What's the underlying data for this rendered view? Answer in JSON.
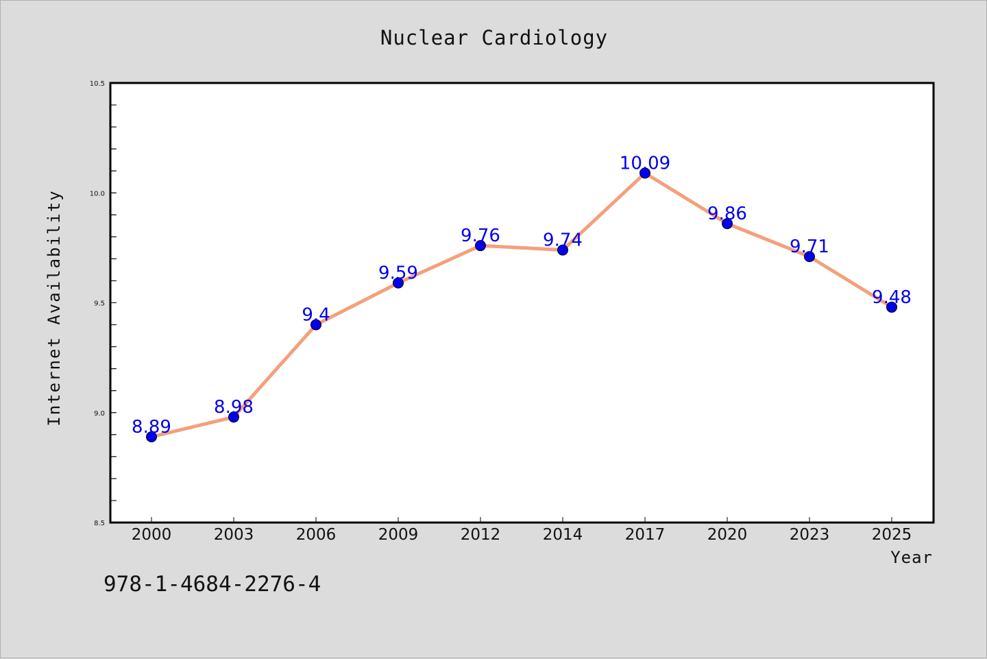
{
  "chart_data": {
    "type": "line",
    "title": "Nuclear Cardiology",
    "xlabel": "Year",
    "ylabel": "Internet Availability",
    "x": [
      "2000",
      "2003",
      "2006",
      "2009",
      "2012",
      "2014",
      "2017",
      "2020",
      "2023",
      "2025"
    ],
    "values": [
      8.89,
      8.98,
      9.4,
      9.59,
      9.76,
      9.74,
      10.09,
      9.86,
      9.71,
      9.48
    ],
    "data_labels": [
      "8.89",
      "8.98",
      "9.4",
      "9.59",
      "9.76",
      "9.74",
      "10.09",
      "9.86",
      "9.71",
      "9.48"
    ],
    "ylim": [
      8.5,
      10.5
    ],
    "y_ticks": [
      "8.5",
      "9.0",
      "9.5",
      "10.0",
      "10.5"
    ],
    "grid": false,
    "colors": {
      "line": "#f4a07c",
      "marker": "#0000ee",
      "data_label": "#0000ee",
      "background": "#dcdcdc",
      "plot_background": "#ffffff"
    }
  },
  "caption": "978-1-4684-2276-4"
}
